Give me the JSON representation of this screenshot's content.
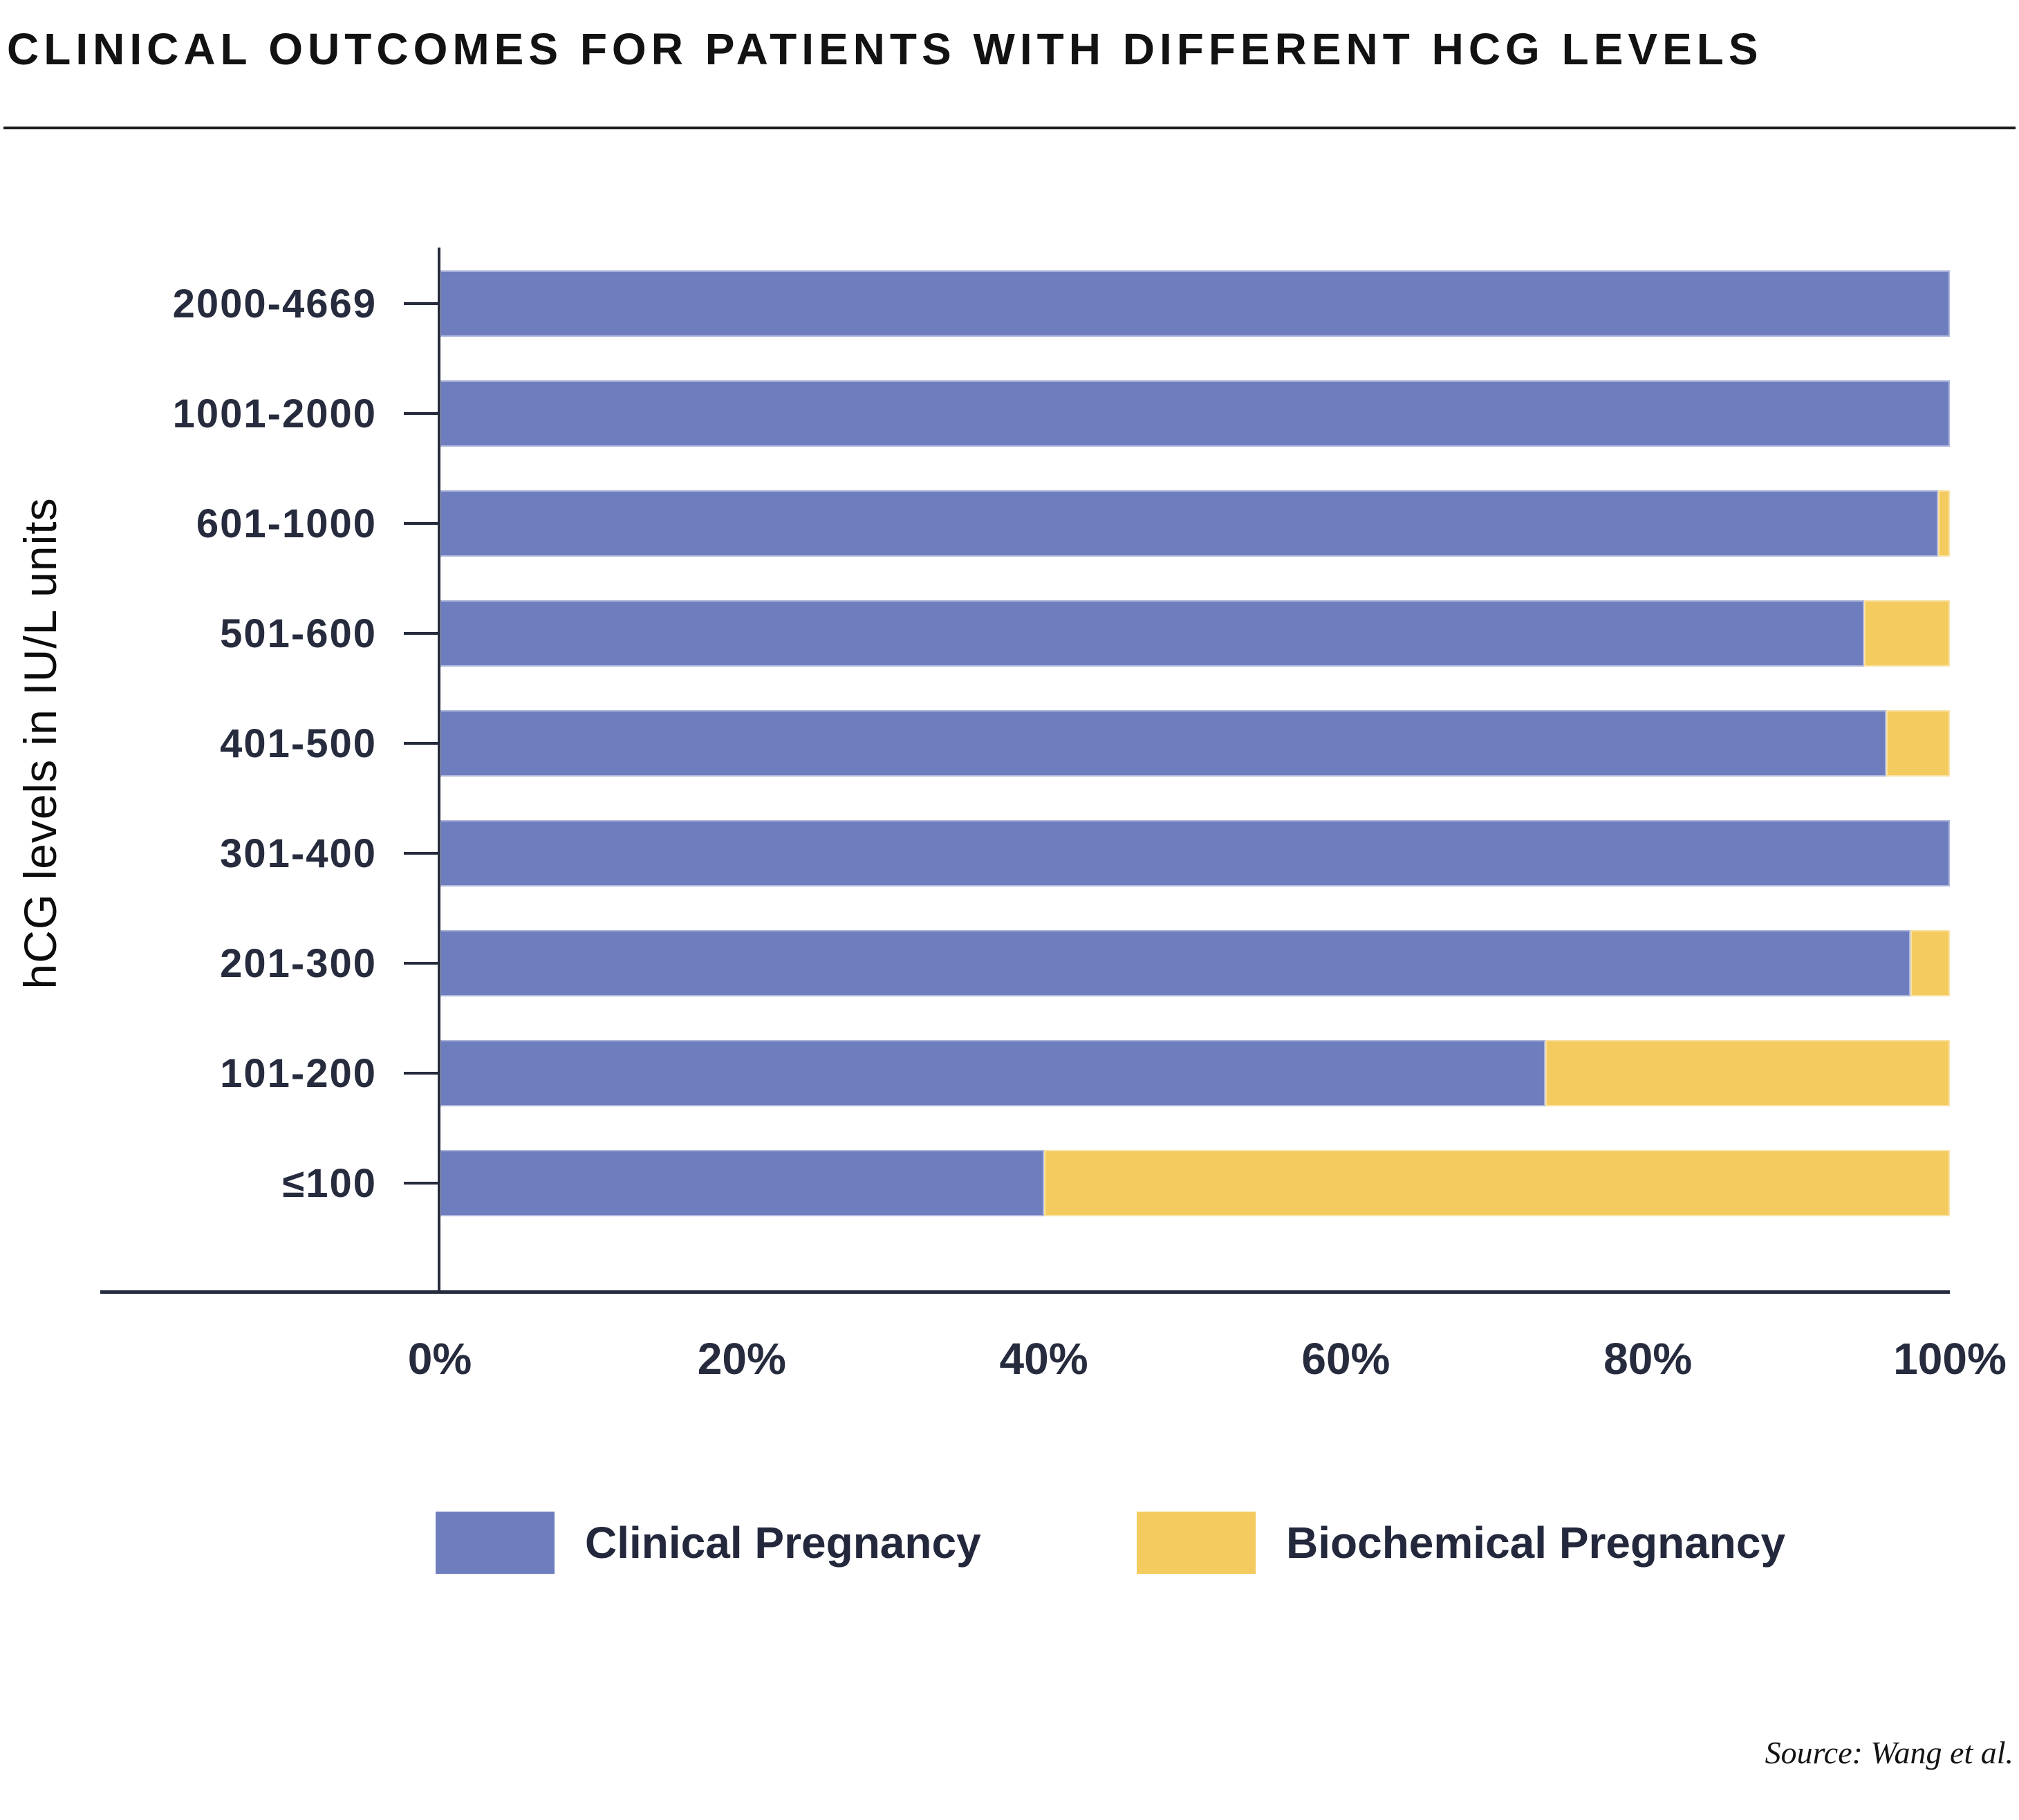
{
  "title": "CLINICAL OUTCOMES FOR PATIENTS WITH DIFFERENT HCG LEVELS",
  "y_axis_title": "hCG levels in IU/L units",
  "source_note": "Source: Wang et al.",
  "x_axis": {
    "min": 0,
    "max": 100,
    "tick_labels": [
      "0%",
      "20%",
      "40%",
      "60%",
      "80%",
      "100%"
    ]
  },
  "legend": {
    "items": [
      {
        "label": "Clinical Pregnancy",
        "color": "#6e7dbe"
      },
      {
        "label": "Biochemical Pregnancy",
        "color": "#f4cb5f"
      }
    ]
  },
  "colors": {
    "clinical": "#6e7dbe",
    "biochemical": "#f4cb5f",
    "axis": "#262b3d",
    "label_text": "#262b3d",
    "title_text": "#121212"
  },
  "chart_data": {
    "type": "bar",
    "orientation": "horizontal",
    "stacked": true,
    "title": "CLINICAL OUTCOMES FOR PATIENTS WITH DIFFERENT HCG LEVELS",
    "xlabel": "",
    "ylabel": "hCG levels in IU/L units",
    "categories": [
      "2000-4669",
      "1001-2000",
      "601-1000",
      "501-600",
      "401-500",
      "301-400",
      "201-300",
      "101-200",
      "≤100"
    ],
    "series": [
      {
        "name": "Clinical Pregnancy",
        "color": "#6e7dbe",
        "values": [
          100,
          100,
          99.2,
          94.3,
          95.8,
          100,
          97.4,
          73.2,
          40
        ]
      },
      {
        "name": "Biochemical Pregnancy",
        "color": "#f4cb5f",
        "values": [
          0,
          0,
          0.8,
          5.7,
          4.2,
          0,
          2.6,
          26.8,
          60
        ]
      }
    ],
    "values_unit": "%",
    "xlim": [
      0,
      100
    ],
    "x_tick_labels": [
      "0%",
      "20%",
      "40%",
      "60%",
      "80%",
      "100%"
    ],
    "grid": false,
    "legend_position": "bottom"
  }
}
